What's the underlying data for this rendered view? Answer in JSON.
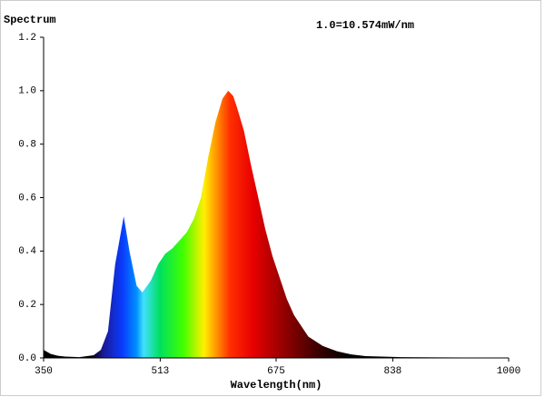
{
  "chart_data": {
    "type": "area",
    "title": "Spectrum",
    "annotation": "1.0=10.574mW/nm",
    "x_label": "Wavelength(nm)",
    "x": [
      350,
      360,
      370,
      380,
      400,
      420,
      430,
      440,
      450,
      462,
      470,
      480,
      488,
      500,
      510,
      520,
      530,
      540,
      550,
      560,
      570,
      580,
      590,
      600,
      608,
      615,
      620,
      630,
      640,
      650,
      660,
      670,
      680,
      690,
      700,
      710,
      720,
      740,
      760,
      780,
      800,
      850,
      900,
      1000
    ],
    "values": [
      0.03,
      0.015,
      0.008,
      0.005,
      0.003,
      0.01,
      0.03,
      0.1,
      0.35,
      0.53,
      0.4,
      0.27,
      0.245,
      0.29,
      0.35,
      0.39,
      0.41,
      0.44,
      0.47,
      0.52,
      0.6,
      0.75,
      0.88,
      0.97,
      1.0,
      0.98,
      0.94,
      0.85,
      0.72,
      0.6,
      0.48,
      0.38,
      0.3,
      0.22,
      0.16,
      0.12,
      0.08,
      0.045,
      0.025,
      0.013,
      0.007,
      0.003,
      0.002,
      0.001
    ],
    "xlim": [
      350,
      1000
    ],
    "xticks": [
      350,
      513,
      675,
      838,
      1000
    ],
    "ylim": [
      0,
      1.2
    ],
    "yticks": [
      {
        "value": 0,
        "label": "0.0"
      },
      0.2,
      0.4,
      0.6,
      0.8,
      {
        "value": 1,
        "label": "1.0"
      },
      1.2
    ]
  }
}
